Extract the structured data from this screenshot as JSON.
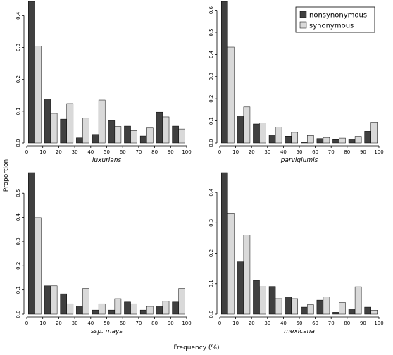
{
  "figure": {
    "xlabel": "Frequency (%)",
    "ylabel": "Proportion"
  },
  "legend": {
    "placement": "top-right",
    "entries": [
      {
        "label": "nonsynonymous",
        "color": "#404040"
      },
      {
        "label": "synonymous",
        "color": "#d9d9d9"
      }
    ]
  },
  "chart_data": [
    {
      "type": "bar",
      "title": "luxurians",
      "x_ticks": [
        0,
        10,
        20,
        30,
        40,
        50,
        60,
        70,
        80,
        90,
        100
      ],
      "y_ticks": [
        "0.0",
        "0.1",
        "0.2",
        "0.3",
        "0.4"
      ],
      "ylim": [
        0,
        0.445
      ],
      "categories": [
        "0-10",
        "10-20",
        "20-30",
        "30-40",
        "40-50",
        "50-60",
        "60-70",
        "70-80",
        "80-90",
        "90-100"
      ],
      "series": [
        {
          "name": "nonsynonymous",
          "color": "#404040",
          "values": [
            0.445,
            0.138,
            0.075,
            0.016,
            0.027,
            0.07,
            0.053,
            0.022,
            0.097,
            0.053
          ]
        },
        {
          "name": "synonymous",
          "color": "#d9d9d9",
          "values": [
            0.304,
            0.093,
            0.124,
            0.078,
            0.135,
            0.052,
            0.039,
            0.047,
            0.082,
            0.044
          ]
        }
      ]
    },
    {
      "type": "bar",
      "title": "parviglumis",
      "x_ticks": [
        0,
        10,
        20,
        30,
        40,
        50,
        60,
        70,
        80,
        90,
        100
      ],
      "y_ticks": [
        "0.0",
        "0.1",
        "0.2",
        "0.3",
        "0.4",
        "0.5",
        "0.6"
      ],
      "ylim": [
        0,
        0.64
      ],
      "categories": [
        "0-10",
        "10-20",
        "20-30",
        "30-40",
        "40-50",
        "50-60",
        "60-70",
        "70-80",
        "80-90",
        "90-100"
      ],
      "series": [
        {
          "name": "nonsynonymous",
          "color": "#404040",
          "values": [
            0.64,
            0.122,
            0.086,
            0.037,
            0.031,
            0.005,
            0.02,
            0.015,
            0.018,
            0.053
          ]
        },
        {
          "name": "synonymous",
          "color": "#d9d9d9",
          "values": [
            0.433,
            0.163,
            0.091,
            0.072,
            0.048,
            0.034,
            0.025,
            0.022,
            0.03,
            0.094
          ]
        }
      ]
    },
    {
      "type": "bar",
      "title": "ssp. mays",
      "x_ticks": [
        0,
        10,
        20,
        30,
        40,
        50,
        60,
        70,
        80,
        90,
        100
      ],
      "y_ticks": [
        "0.0",
        "0.1",
        "0.2",
        "0.3",
        "0.4",
        "0.5"
      ],
      "ylim": [
        0,
        0.585
      ],
      "categories": [
        "0-10",
        "10-20",
        "20-30",
        "30-40",
        "40-50",
        "50-60",
        "60-70",
        "70-80",
        "80-90",
        "90-100"
      ],
      "series": [
        {
          "name": "nonsynonymous",
          "color": "#404040",
          "values": [
            0.585,
            0.117,
            0.084,
            0.034,
            0.017,
            0.017,
            0.05,
            0.017,
            0.034,
            0.05
          ]
        },
        {
          "name": "synonymous",
          "color": "#d9d9d9",
          "values": [
            0.399,
            0.117,
            0.043,
            0.106,
            0.043,
            0.064,
            0.043,
            0.032,
            0.053,
            0.106
          ]
        }
      ]
    },
    {
      "type": "bar",
      "title": "mexicana",
      "x_ticks": [
        0,
        10,
        20,
        30,
        40,
        50,
        60,
        70,
        80,
        90,
        100
      ],
      "y_ticks": [
        "0.0",
        "0.1",
        "0.2",
        "0.3",
        "0.4"
      ],
      "ylim": [
        0,
        0.465
      ],
      "categories": [
        "0-10",
        "10-20",
        "20-30",
        "30-40",
        "40-50",
        "50-60",
        "60-70",
        "70-80",
        "80-90",
        "90-100"
      ],
      "series": [
        {
          "name": "nonsynonymous",
          "color": "#404040",
          "values": [
            0.465,
            0.172,
            0.111,
            0.091,
            0.057,
            0.023,
            0.046,
            0.006,
            0.017,
            0.023
          ]
        },
        {
          "name": "synonymous",
          "color": "#d9d9d9",
          "values": [
            0.33,
            0.26,
            0.09,
            0.051,
            0.051,
            0.031,
            0.057,
            0.038,
            0.09,
            0.013
          ]
        }
      ]
    }
  ]
}
